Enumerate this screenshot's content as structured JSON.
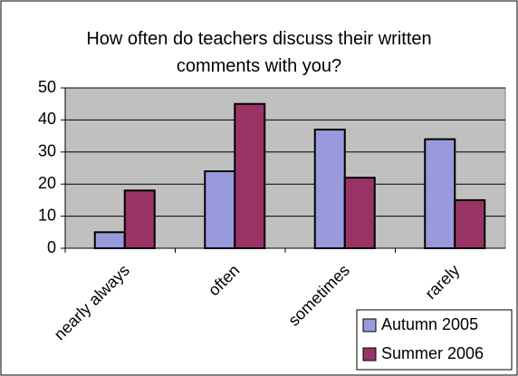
{
  "chart_data": {
    "type": "bar",
    "title": "How often do teachers discuss their written comments with you?",
    "categories": [
      "nearly always",
      "often",
      "sometimes",
      "rarely"
    ],
    "series": [
      {
        "name": "Autumn 2005",
        "color": "#9999dd",
        "values": [
          5,
          24,
          37,
          34
        ]
      },
      {
        "name": "Summer 2006",
        "color": "#993366",
        "values": [
          18,
          45,
          22,
          15
        ]
      }
    ],
    "ylim": [
      0,
      50
    ],
    "yticks": [
      0,
      10,
      20,
      30,
      40,
      50
    ],
    "grid": true,
    "legend": "lower right"
  }
}
